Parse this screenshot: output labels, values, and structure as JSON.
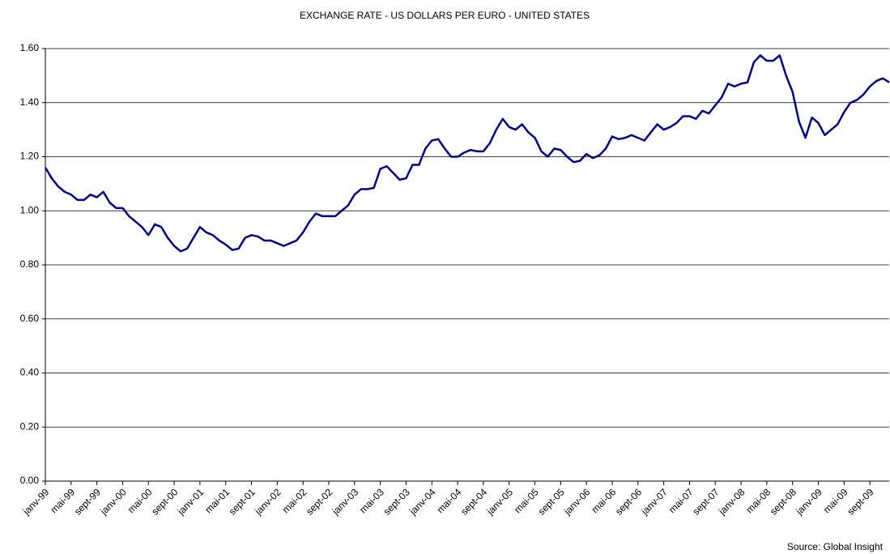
{
  "chart_data": {
    "type": "line",
    "title": "EXCHANGE RATE - US DOLLARS PER EURO - UNITED STATES",
    "source": "Source: Global Insight",
    "categories": [
      "janv-99",
      null,
      null,
      null,
      "mai-99",
      null,
      null,
      null,
      "sept-99",
      null,
      null,
      null,
      "janv-00",
      null,
      null,
      null,
      "mai-00",
      null,
      null,
      null,
      "sept-00",
      null,
      null,
      null,
      "janv-01",
      null,
      null,
      null,
      "mai-01",
      null,
      null,
      null,
      "sept-01",
      null,
      null,
      null,
      "janv-02",
      null,
      null,
      null,
      "mai-02",
      null,
      null,
      null,
      "sept-02",
      null,
      null,
      null,
      "janv-03",
      null,
      null,
      null,
      "mai-03",
      null,
      null,
      null,
      "sept-03",
      null,
      null,
      null,
      "janv-04",
      null,
      null,
      null,
      "mai-04",
      null,
      null,
      null,
      "sept-04",
      null,
      null,
      null,
      "janv-05",
      null,
      null,
      null,
      "mai-05",
      null,
      null,
      null,
      "sept-05",
      null,
      null,
      null,
      "janv-06",
      null,
      null,
      null,
      "mai-06",
      null,
      null,
      null,
      "sept-06",
      null,
      null,
      null,
      "janv-07",
      null,
      null,
      null,
      "mai-07",
      null,
      null,
      null,
      "sept-07",
      null,
      null,
      null,
      "janv-08",
      null,
      null,
      null,
      "mai-08",
      null,
      null,
      null,
      "sept-08",
      null,
      null,
      null,
      "janv-09",
      null,
      null,
      null,
      "mai-09",
      null,
      null,
      null,
      "sept-09",
      null,
      null,
      null
    ],
    "series": [
      {
        "name": "US dollars per euro",
        "color": "#000080",
        "values": [
          1.16,
          1.12,
          1.09,
          1.07,
          1.06,
          1.04,
          1.04,
          1.06,
          1.05,
          1.07,
          1.03,
          1.01,
          1.01,
          0.98,
          0.96,
          0.94,
          0.91,
          0.95,
          0.94,
          0.9,
          0.87,
          0.85,
          0.86,
          0.9,
          0.94,
          0.92,
          0.91,
          0.89,
          0.875,
          0.855,
          0.86,
          0.9,
          0.91,
          0.905,
          0.89,
          0.89,
          0.88,
          0.87,
          0.88,
          0.89,
          0.92,
          0.96,
          0.99,
          0.98,
          0.98,
          0.98,
          1.0,
          1.02,
          1.06,
          1.08,
          1.08,
          1.085,
          1.155,
          1.165,
          1.14,
          1.115,
          1.12,
          1.17,
          1.17,
          1.23,
          1.26,
          1.265,
          1.23,
          1.2,
          1.2,
          1.215,
          1.225,
          1.22,
          1.22,
          1.25,
          1.3,
          1.34,
          1.31,
          1.3,
          1.32,
          1.29,
          1.27,
          1.22,
          1.2,
          1.23,
          1.225,
          1.2,
          1.18,
          1.185,
          1.21,
          1.195,
          1.205,
          1.23,
          1.275,
          1.265,
          1.27,
          1.28,
          1.27,
          1.26,
          1.29,
          1.32,
          1.3,
          1.31,
          1.325,
          1.35,
          1.35,
          1.34,
          1.37,
          1.36,
          1.39,
          1.42,
          1.47,
          1.46,
          1.47,
          1.475,
          1.55,
          1.575,
          1.555,
          1.555,
          1.575,
          1.5,
          1.44,
          1.33,
          1.27,
          1.345,
          1.325,
          1.28,
          1.3,
          1.32,
          1.365,
          1.4,
          1.41,
          1.43,
          1.46,
          1.48,
          1.49,
          1.475
        ]
      }
    ],
    "ylim": [
      0,
      1.6
    ],
    "yticks": [
      {
        "value": 0,
        "label": "0.00"
      },
      {
        "value": 0.2,
        "label": "0.20"
      },
      {
        "value": 0.4,
        "label": "0.40"
      },
      {
        "value": 0.6,
        "label": "0.60"
      },
      {
        "value": 0.8,
        "label": "0.80"
      },
      {
        "value": 1.0,
        "label": "1.00"
      },
      {
        "value": 1.2,
        "label": "1.20"
      },
      {
        "value": 1.4,
        "label": "1.40"
      },
      {
        "value": 1.6,
        "label": "1.60"
      }
    ],
    "grid": true
  }
}
